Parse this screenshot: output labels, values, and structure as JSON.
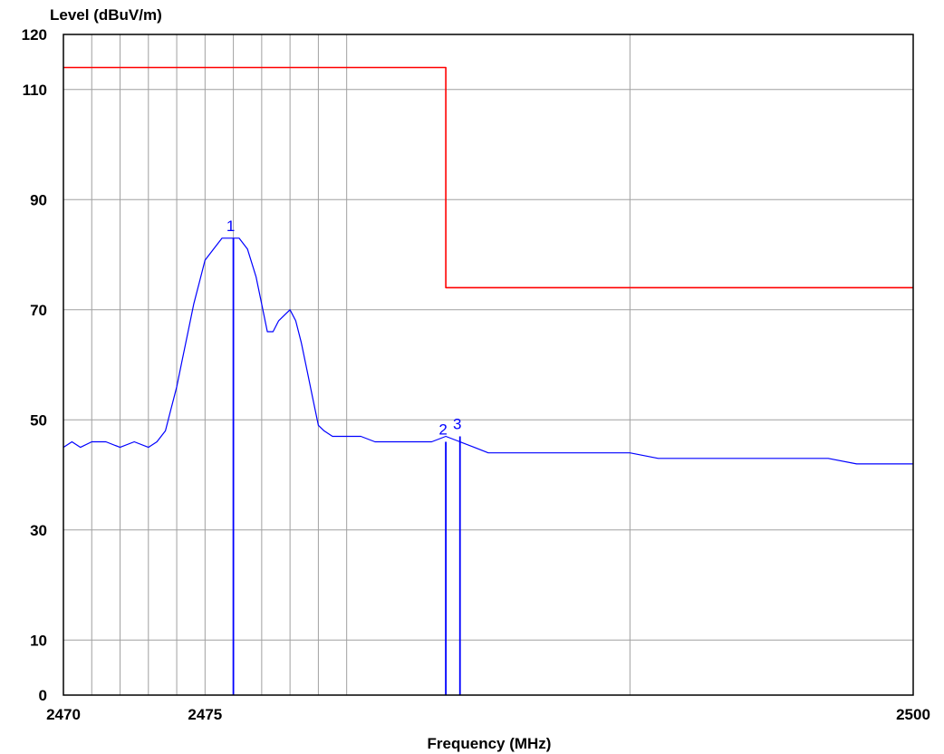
{
  "chart_data": {
    "type": "line",
    "title": "",
    "xlabel": "Frequency (MHz)",
    "ylabel": "Level (dBuV/m)",
    "xlim": [
      2470,
      2500
    ],
    "ylim": [
      0,
      120
    ],
    "x_tick_labels": [
      2470,
      2475,
      2500
    ],
    "y_tick_labels": [
      0,
      10,
      30,
      50,
      70,
      90,
      110,
      120
    ],
    "x_gridlines": [
      2471,
      2472,
      2473,
      2474,
      2475,
      2476,
      2477,
      2478,
      2479,
      2480,
      2490,
      2500
    ],
    "y_gridlines": [
      10,
      30,
      50,
      70,
      90,
      110
    ],
    "grid": true,
    "colors": {
      "limit": "#ff0000",
      "trace": "#0000ff",
      "grid": "#a0a0a0"
    },
    "series": [
      {
        "role": "limit",
        "color": "#ff0000",
        "points": [
          [
            2470,
            114
          ],
          [
            2483.5,
            114
          ],
          [
            2483.5,
            74
          ],
          [
            2500,
            74
          ]
        ]
      },
      {
        "role": "trace",
        "color": "#0000ff",
        "points": [
          [
            2470.0,
            45
          ],
          [
            2470.3,
            46
          ],
          [
            2470.6,
            45
          ],
          [
            2471.0,
            46
          ],
          [
            2471.5,
            46
          ],
          [
            2472.0,
            45
          ],
          [
            2472.5,
            46
          ],
          [
            2473.0,
            45
          ],
          [
            2473.3,
            46
          ],
          [
            2473.6,
            48
          ],
          [
            2473.8,
            52
          ],
          [
            2474.0,
            56
          ],
          [
            2474.2,
            61
          ],
          [
            2474.4,
            66
          ],
          [
            2474.6,
            71
          ],
          [
            2474.8,
            75
          ],
          [
            2475.0,
            79
          ],
          [
            2475.3,
            81
          ],
          [
            2475.6,
            83
          ],
          [
            2475.9,
            83
          ],
          [
            2476.2,
            83
          ],
          [
            2476.5,
            81
          ],
          [
            2476.8,
            76
          ],
          [
            2477.0,
            71
          ],
          [
            2477.2,
            66
          ],
          [
            2477.4,
            66
          ],
          [
            2477.6,
            68
          ],
          [
            2477.8,
            69
          ],
          [
            2478.0,
            70
          ],
          [
            2478.2,
            68
          ],
          [
            2478.4,
            64
          ],
          [
            2478.6,
            59
          ],
          [
            2478.8,
            54
          ],
          [
            2479.0,
            49
          ],
          [
            2479.2,
            48
          ],
          [
            2479.5,
            47
          ],
          [
            2480.0,
            47
          ],
          [
            2480.5,
            47
          ],
          [
            2481.0,
            46
          ],
          [
            2481.5,
            46
          ],
          [
            2482.0,
            46
          ],
          [
            2482.5,
            46
          ],
          [
            2483.0,
            46
          ],
          [
            2483.5,
            47
          ],
          [
            2484.0,
            46
          ],
          [
            2484.5,
            45
          ],
          [
            2485.0,
            44
          ],
          [
            2485.5,
            44
          ],
          [
            2486.0,
            44
          ],
          [
            2487.0,
            44
          ],
          [
            2488.0,
            44
          ],
          [
            2489.0,
            44
          ],
          [
            2490.0,
            44
          ],
          [
            2491.0,
            43
          ],
          [
            2492.0,
            43
          ],
          [
            2493.0,
            43
          ],
          [
            2494.0,
            43
          ],
          [
            2495.0,
            43
          ],
          [
            2496.0,
            43
          ],
          [
            2497.0,
            43
          ],
          [
            2498.0,
            42
          ],
          [
            2499.0,
            42
          ],
          [
            2500.0,
            42
          ]
        ]
      }
    ],
    "markers": [
      {
        "label": "1",
        "x": 2476.0,
        "y": 83
      },
      {
        "label": "2",
        "x": 2483.5,
        "y": 46
      },
      {
        "label": "3",
        "x": 2484.0,
        "y": 47
      }
    ]
  }
}
